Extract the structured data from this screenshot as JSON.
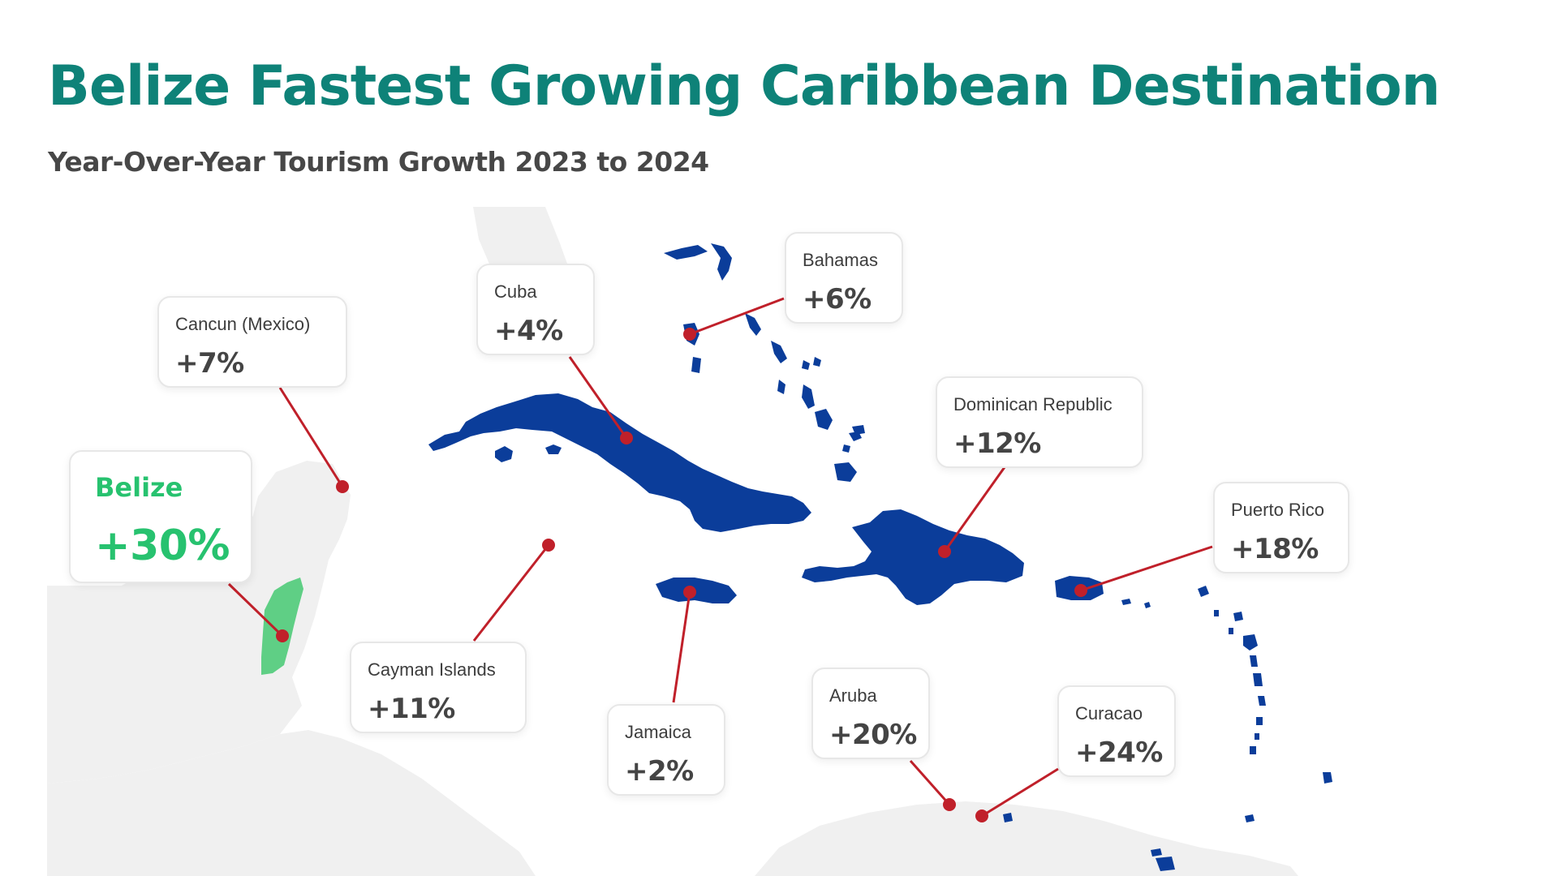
{
  "title": "Belize Fastest Growing Caribbean Destination",
  "subtitle": "Year-Over-Year Tourism Growth 2023 to 2024",
  "colors": {
    "title": "#0e8278",
    "subtitle": "#474747",
    "highlight": "#27c26f",
    "highlight_fill": "#5fcf85",
    "islands": "#0b3d9a",
    "land": "#f0f0f0",
    "marker": "#c0202a"
  },
  "destinations": [
    {
      "id": "cancun",
      "name": "Cancun (Mexico)",
      "value": "+7%",
      "growth_pct": 7
    },
    {
      "id": "cuba",
      "name": "Cuba",
      "value": "+4%",
      "growth_pct": 4
    },
    {
      "id": "bahamas",
      "name": "Bahamas",
      "value": "+6%",
      "growth_pct": 6
    },
    {
      "id": "dominican-republic",
      "name": "Dominican Republic",
      "value": "+12%",
      "growth_pct": 12
    },
    {
      "id": "belize",
      "name": "Belize",
      "value": "+30%",
      "growth_pct": 30,
      "highlight": true
    },
    {
      "id": "puerto-rico",
      "name": "Puerto Rico",
      "value": "+18%",
      "growth_pct": 18
    },
    {
      "id": "cayman-islands",
      "name": "Cayman Islands",
      "value": "+11%",
      "growth_pct": 11
    },
    {
      "id": "jamaica",
      "name": "Jamaica",
      "value": "+2%",
      "growth_pct": 2
    },
    {
      "id": "aruba",
      "name": "Aruba",
      "value": "+20%",
      "growth_pct": 20
    },
    {
      "id": "curacao",
      "name": "Curacao",
      "value": "+24%",
      "growth_pct": 24
    }
  ]
}
